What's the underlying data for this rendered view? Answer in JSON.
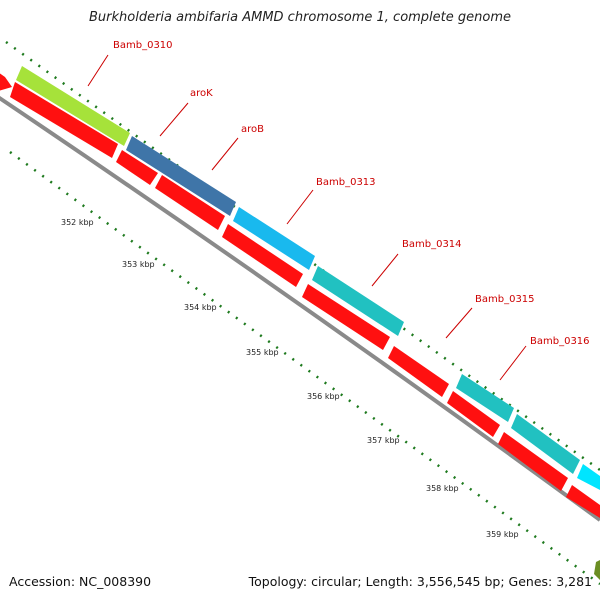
{
  "title": "Burkholderia ambifaria AMMD chromosome 1, complete genome",
  "footer": {
    "accession": "Accession: NC_008390",
    "topology": "Topology: circular; Length: 3,556,545 bp; Genes: 3,281"
  },
  "genes": [
    {
      "name": "Bamb_0310",
      "color": "#a6e23a"
    },
    {
      "name": "aroK",
      "color": "#3f75a8"
    },
    {
      "name": "aroB",
      "color": "#19b9ee"
    },
    {
      "name": "Bamb_0313",
      "color": "#21c1c1"
    },
    {
      "name": "Bamb_0314",
      "color": "#21c1c1"
    },
    {
      "name": "Bamb_0315",
      "color": "#21c1c1"
    },
    {
      "name": "Bamb_0316",
      "color": "#21c1c1"
    },
    {
      "name": "",
      "color": "#00e5ff"
    }
  ],
  "ticks": [
    "352 kbp",
    "353 kbp",
    "354 kbp",
    "355 kbp",
    "356 kbp",
    "357 kbp",
    "358 kbp",
    "359 kbp"
  ],
  "colors": {
    "cds": "#ff1010",
    "backbone": "#8a8a8a",
    "label": "#cc0000",
    "ruler": "#1e7a1e"
  }
}
